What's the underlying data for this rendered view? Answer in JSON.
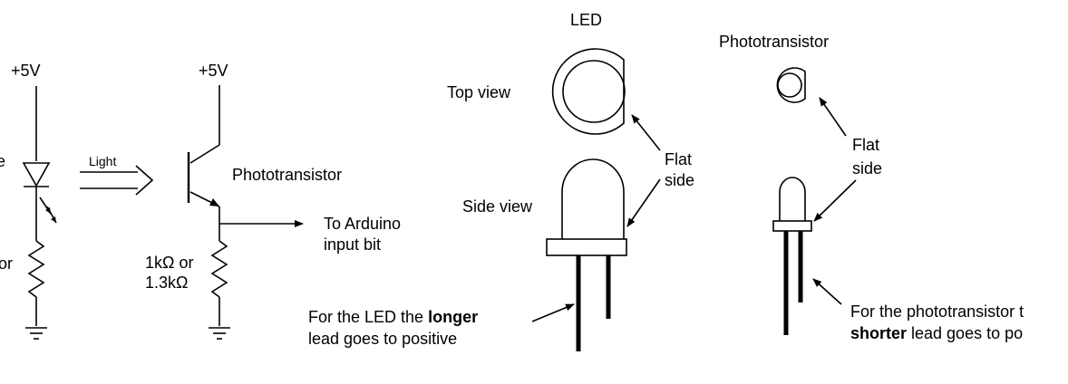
{
  "circuit": {
    "led_supply": "+5V",
    "led_side_label_fragment": "e",
    "led_resistor_fragment": "or",
    "light_label": "Light",
    "pt_supply": "+5V",
    "pt_label": "Phototransistor",
    "output_label_line1": "To Arduino",
    "output_label_line2": "input bit",
    "pt_resistor_line1": "1kΩ or",
    "pt_resistor_line2": "1.3kΩ"
  },
  "led_pkg": {
    "title": "LED",
    "top_view": "Top view",
    "side_view": "Side view",
    "flat_line1": "Flat",
    "flat_line2": "side",
    "note_prefix": "For the LED the ",
    "note_bold": "longer",
    "note_line2": "lead goes to positive"
  },
  "pt_pkg": {
    "title": "Phototransistor",
    "flat_line1": "Flat",
    "flat_line2": "side",
    "note_line1": "For the phototransistor t",
    "note_bold": "shorter",
    "note_line2_rest": " lead goes to po"
  }
}
